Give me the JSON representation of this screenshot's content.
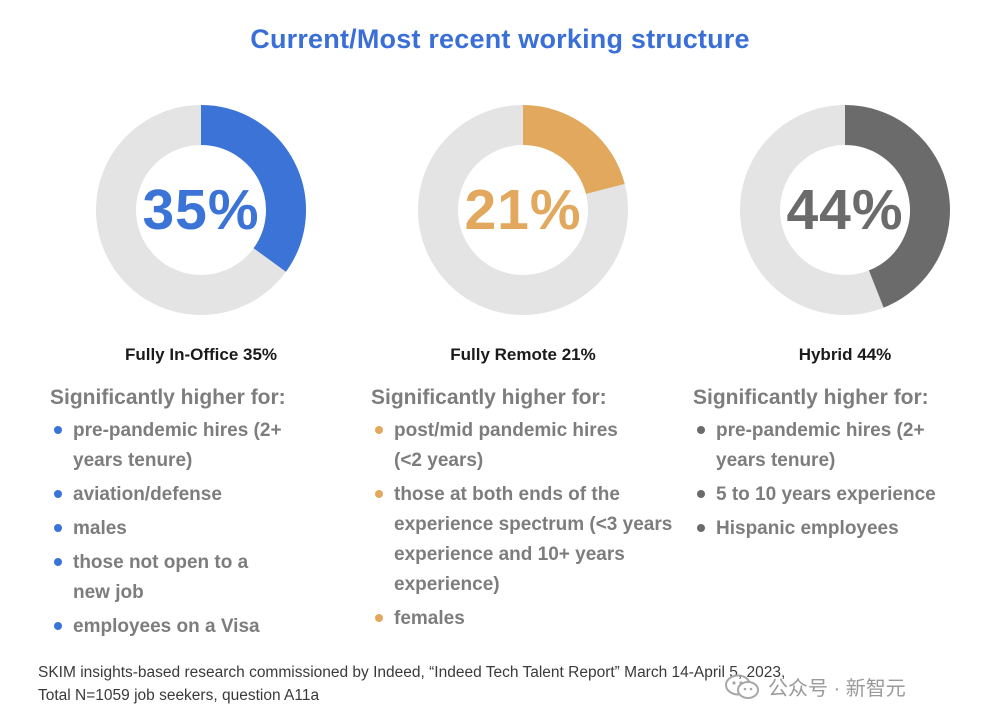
{
  "title": "Current/Most recent working structure",
  "chart_data": {
    "type": "pie",
    "title": "Current/Most recent working structure",
    "series": [
      {
        "name": "Fully In-Office",
        "value": 35,
        "display": "35%",
        "label": "Fully In-Office 35%",
        "color": "#3b74d6",
        "subheading": "Significantly higher for:",
        "bullets": [
          "pre-pandemic hires (2+ years tenure)",
          "aviation/defense",
          "males",
          "those not open to a new job",
          "employees on a Visa"
        ]
      },
      {
        "name": "Fully Remote",
        "value": 21,
        "display": "21%",
        "label": "Fully Remote 21%",
        "color": "#e2a95e",
        "subheading": "Significantly higher for:",
        "bullets": [
          "post/mid pandemic hires (<2 years)",
          "those at both ends of the experience spectrum (<3 years experience and 10+ years experience)",
          "females"
        ]
      },
      {
        "name": "Hybrid",
        "value": 44,
        "display": "44%",
        "label": "Hybrid 44%",
        "color": "#6b6b6b",
        "subheading": "Significantly higher for:",
        "bullets": [
          "pre-pandemic hires (2+ years tenure)",
          "5 to 10 years experience",
          "Hispanic employees"
        ]
      }
    ],
    "track_color": "#e4e4e4"
  },
  "footnote": {
    "line1": "SKIM insights-based research commissioned by Indeed, “Indeed Tech Talent Report” March 14-April 5, 2023,",
    "line2": "Total N=1059 job seekers, question A11a"
  },
  "watermark": "公众号 · 新智元"
}
